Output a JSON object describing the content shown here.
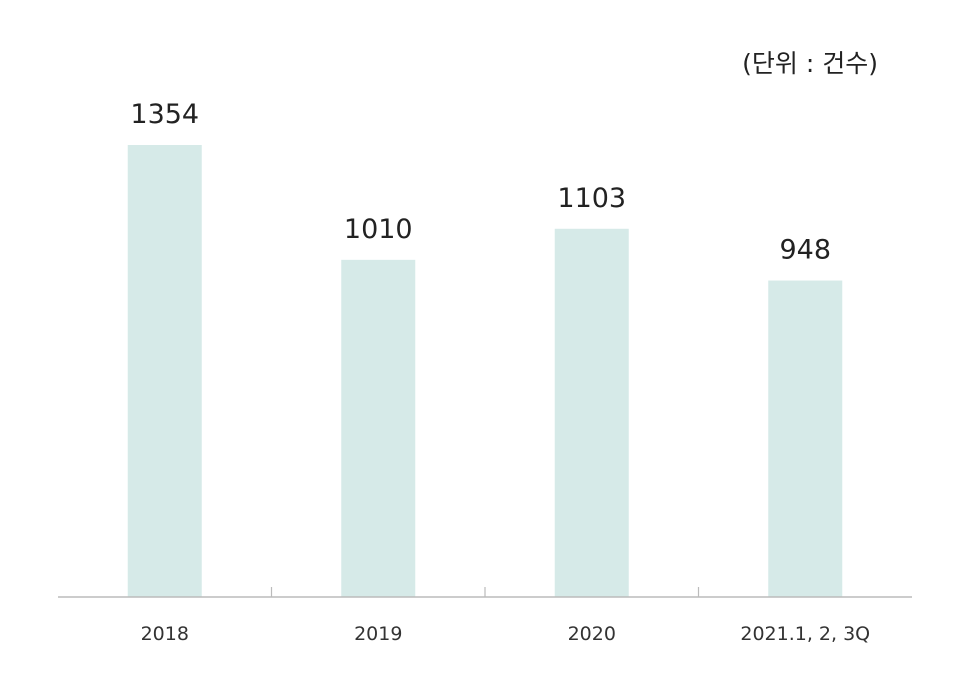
{
  "chart_data": {
    "type": "bar",
    "unit_label": "(단위 : 건수)",
    "categories": [
      "2018",
      "2019",
      "2020",
      "2021.1, 2, 3Q"
    ],
    "values": [
      1354,
      1010,
      1103,
      948
    ],
    "ylim": [
      0,
      1354
    ],
    "grid": false,
    "bar_color": "#d6eae8",
    "axis_color": "#bbbbbb",
    "label_color": "#222222"
  }
}
